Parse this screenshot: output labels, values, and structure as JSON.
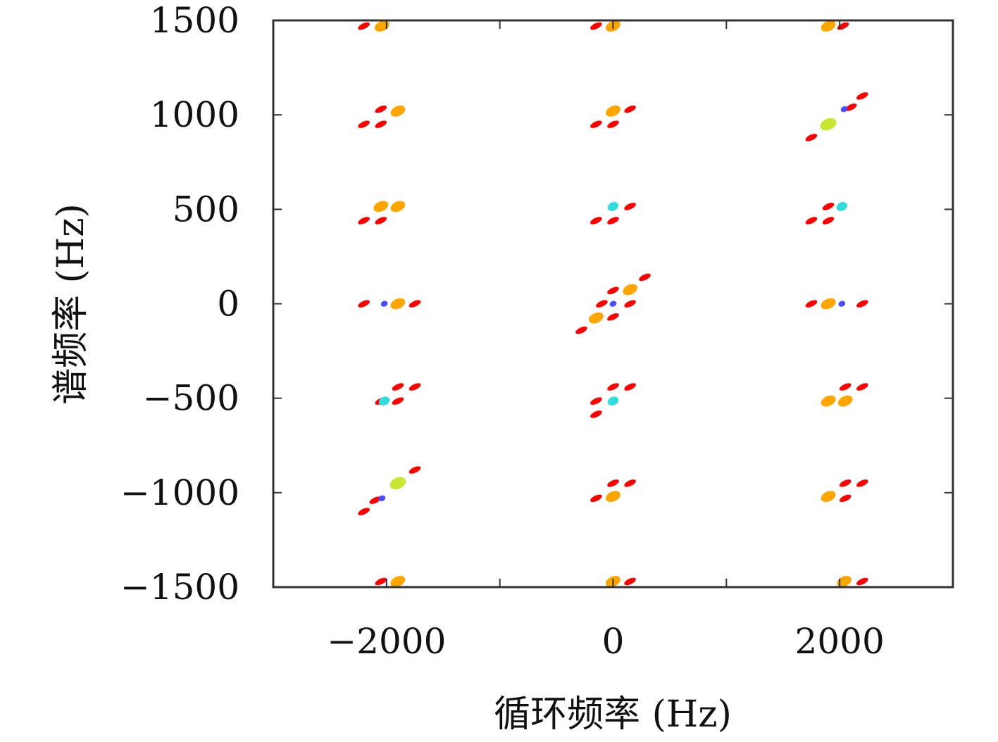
{
  "chart_data": {
    "type": "scatter",
    "subtype": "contour",
    "title": "",
    "xlabel": "循环频率 (Hz)",
    "ylabel": "谱频率 (Hz)",
    "xlim": [
      -3000,
      3000
    ],
    "ylim": [
      -1500,
      1500
    ],
    "x_ticks": [
      -2000,
      0,
      2000
    ],
    "x_tick_labels": [
      "−2000",
      "0",
      "2000"
    ],
    "y_ticks": [
      1500,
      1000,
      500,
      0,
      -500,
      -1000,
      -1500
    ],
    "y_tick_labels": [
      "1500",
      "1000",
      "500",
      "0",
      "−500",
      "−1000",
      "−1500"
    ],
    "grid": false,
    "colors": {
      "red": "#ff0000",
      "orange": "#ffa500",
      "yellow_green": "#c8e632",
      "green": "#32e632",
      "cyan": "#32dcdc",
      "blue": "#4a4aff"
    },
    "points": [
      {
        "x": -2020,
        "y": 0,
        "level": "blue"
      },
      {
        "x": 0,
        "y": 0,
        "level": "blue"
      },
      {
        "x": 2020,
        "y": 0,
        "level": "blue"
      },
      {
        "x": -2040,
        "y": -1030,
        "level": "blue"
      },
      {
        "x": 2040,
        "y": 1030,
        "level": "blue"
      },
      {
        "x": -2020,
        "y": -515,
        "level": "cyan"
      },
      {
        "x": 2020,
        "y": 515,
        "level": "cyan"
      },
      {
        "x": 0,
        "y": 515,
        "level": "cyan"
      },
      {
        "x": 0,
        "y": -515,
        "level": "cyan"
      },
      {
        "x": -1900,
        "y": -950,
        "level": "yellow_green"
      },
      {
        "x": 1900,
        "y": 950,
        "level": "yellow_green"
      },
      {
        "x": -1900,
        "y": 0,
        "level": "orange"
      },
      {
        "x": 1900,
        "y": 0,
        "level": "orange"
      },
      {
        "x": -150,
        "y": -75,
        "level": "orange"
      },
      {
        "x": 150,
        "y": 75,
        "level": "orange"
      },
      {
        "x": -2050,
        "y": 515,
        "level": "orange"
      },
      {
        "x": -1900,
        "y": 515,
        "level": "orange"
      },
      {
        "x": 1900,
        "y": -515,
        "level": "orange"
      },
      {
        "x": 2050,
        "y": -515,
        "level": "orange"
      },
      {
        "x": -1900,
        "y": 1020,
        "level": "orange"
      },
      {
        "x": 0,
        "y": 1020,
        "level": "orange"
      },
      {
        "x": 0,
        "y": -1020,
        "level": "orange"
      },
      {
        "x": 1900,
        "y": -1020,
        "level": "orange"
      },
      {
        "x": -2040,
        "y": 1470,
        "level": "orange"
      },
      {
        "x": 0,
        "y": 1470,
        "level": "orange"
      },
      {
        "x": 1900,
        "y": 1470,
        "level": "orange"
      },
      {
        "x": -1900,
        "y": -1470,
        "level": "orange"
      },
      {
        "x": 0,
        "y": -1470,
        "level": "orange"
      },
      {
        "x": 2040,
        "y": -1470,
        "level": "orange"
      },
      {
        "x": -2200,
        "y": 0,
        "level": "red"
      },
      {
        "x": -1750,
        "y": 0,
        "level": "red"
      },
      {
        "x": 1750,
        "y": 0,
        "level": "red"
      },
      {
        "x": 2200,
        "y": 0,
        "level": "red"
      },
      {
        "x": -100,
        "y": 0,
        "level": "red"
      },
      {
        "x": 150,
        "y": 0,
        "level": "red"
      },
      {
        "x": 280,
        "y": 140,
        "level": "red"
      },
      {
        "x": -280,
        "y": -140,
        "level": "red"
      },
      {
        "x": 0,
        "y": 70,
        "level": "red"
      },
      {
        "x": 0,
        "y": -70,
        "level": "red"
      },
      {
        "x": -2200,
        "y": 1470,
        "level": "red"
      },
      {
        "x": -150,
        "y": 1470,
        "level": "red"
      },
      {
        "x": 2030,
        "y": 1470,
        "level": "red"
      },
      {
        "x": -2050,
        "y": -1470,
        "level": "red"
      },
      {
        "x": 150,
        "y": -1470,
        "level": "red"
      },
      {
        "x": 2200,
        "y": -1470,
        "level": "red"
      },
      {
        "x": -2050,
        "y": 1030,
        "level": "red"
      },
      {
        "x": -2200,
        "y": 950,
        "level": "red"
      },
      {
        "x": -2050,
        "y": 950,
        "level": "red"
      },
      {
        "x": -150,
        "y": 950,
        "level": "red"
      },
      {
        "x": 0,
        "y": 950,
        "level": "red"
      },
      {
        "x": 150,
        "y": 1030,
        "level": "red"
      },
      {
        "x": 1750,
        "y": 880,
        "level": "red"
      },
      {
        "x": 2100,
        "y": 1040,
        "level": "red"
      },
      {
        "x": 2200,
        "y": 1100,
        "level": "red"
      },
      {
        "x": -2200,
        "y": 440,
        "level": "red"
      },
      {
        "x": -2050,
        "y": 440,
        "level": "red"
      },
      {
        "x": -150,
        "y": 440,
        "level": "red"
      },
      {
        "x": 0,
        "y": 440,
        "level": "red"
      },
      {
        "x": 150,
        "y": 515,
        "level": "red"
      },
      {
        "x": 1750,
        "y": 440,
        "level": "red"
      },
      {
        "x": 1900,
        "y": 440,
        "level": "red"
      },
      {
        "x": 1900,
        "y": 515,
        "level": "red"
      },
      {
        "x": -2050,
        "y": -515,
        "level": "red"
      },
      {
        "x": -1900,
        "y": -515,
        "level": "red"
      },
      {
        "x": -1900,
        "y": -440,
        "level": "red"
      },
      {
        "x": -1750,
        "y": -440,
        "level": "red"
      },
      {
        "x": -150,
        "y": -515,
        "level": "red"
      },
      {
        "x": 0,
        "y": -440,
        "level": "red"
      },
      {
        "x": 150,
        "y": -440,
        "level": "red"
      },
      {
        "x": -150,
        "y": -585,
        "level": "red"
      },
      {
        "x": 1900,
        "y": -515,
        "level": "red"
      },
      {
        "x": 2050,
        "y": -440,
        "level": "red"
      },
      {
        "x": 2200,
        "y": -440,
        "level": "red"
      },
      {
        "x": -1750,
        "y": -880,
        "level": "red"
      },
      {
        "x": -2100,
        "y": -1040,
        "level": "red"
      },
      {
        "x": -2200,
        "y": -1100,
        "level": "red"
      },
      {
        "x": -150,
        "y": -1030,
        "level": "red"
      },
      {
        "x": 0,
        "y": -950,
        "level": "red"
      },
      {
        "x": 150,
        "y": -950,
        "level": "red"
      },
      {
        "x": 2050,
        "y": -1030,
        "level": "red"
      },
      {
        "x": 2050,
        "y": -950,
        "level": "red"
      },
      {
        "x": 2200,
        "y": -950,
        "level": "red"
      }
    ]
  }
}
